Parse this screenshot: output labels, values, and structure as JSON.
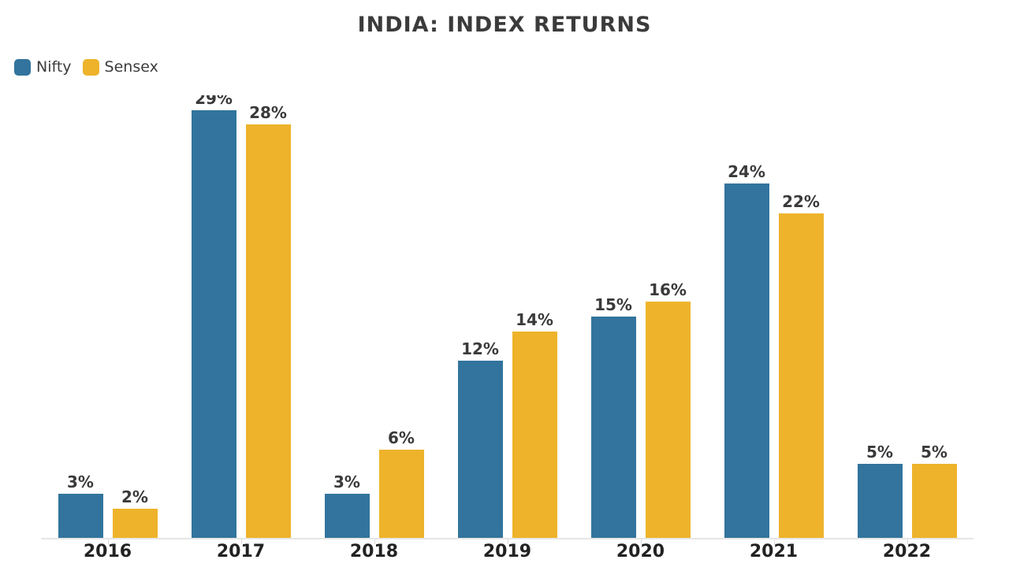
{
  "header": {
    "title": "INDIA: INDEX RETURNS"
  },
  "chart_data": {
    "type": "bar",
    "title": "INDIA: INDEX RETURNS",
    "categories": [
      "2016",
      "2017",
      "2018",
      "2019",
      "2020",
      "2021",
      "2022"
    ],
    "series": [
      {
        "name": "Nifty",
        "color": "#32749d",
        "values": [
          3,
          29,
          3,
          12,
          15,
          24,
          5
        ]
      },
      {
        "name": "Sensex",
        "color": "#eeb32b",
        "values": [
          2,
          28,
          6,
          14,
          16,
          22,
          5
        ]
      }
    ],
    "value_suffix": "%",
    "bar_labels": true,
    "ylim": [
      0,
      30
    ],
    "grid": false,
    "y_axis_visible": false,
    "legend_position": "top-left"
  },
  "colors": {
    "background": "#ffffff",
    "title_text": "#3b3b3b",
    "value_label_text": "#3a3a3a",
    "axis_label_text": "#222222",
    "legend_text": "#3c3c3c",
    "axis_line": "#e6e6e6",
    "tick": "#dadada"
  }
}
